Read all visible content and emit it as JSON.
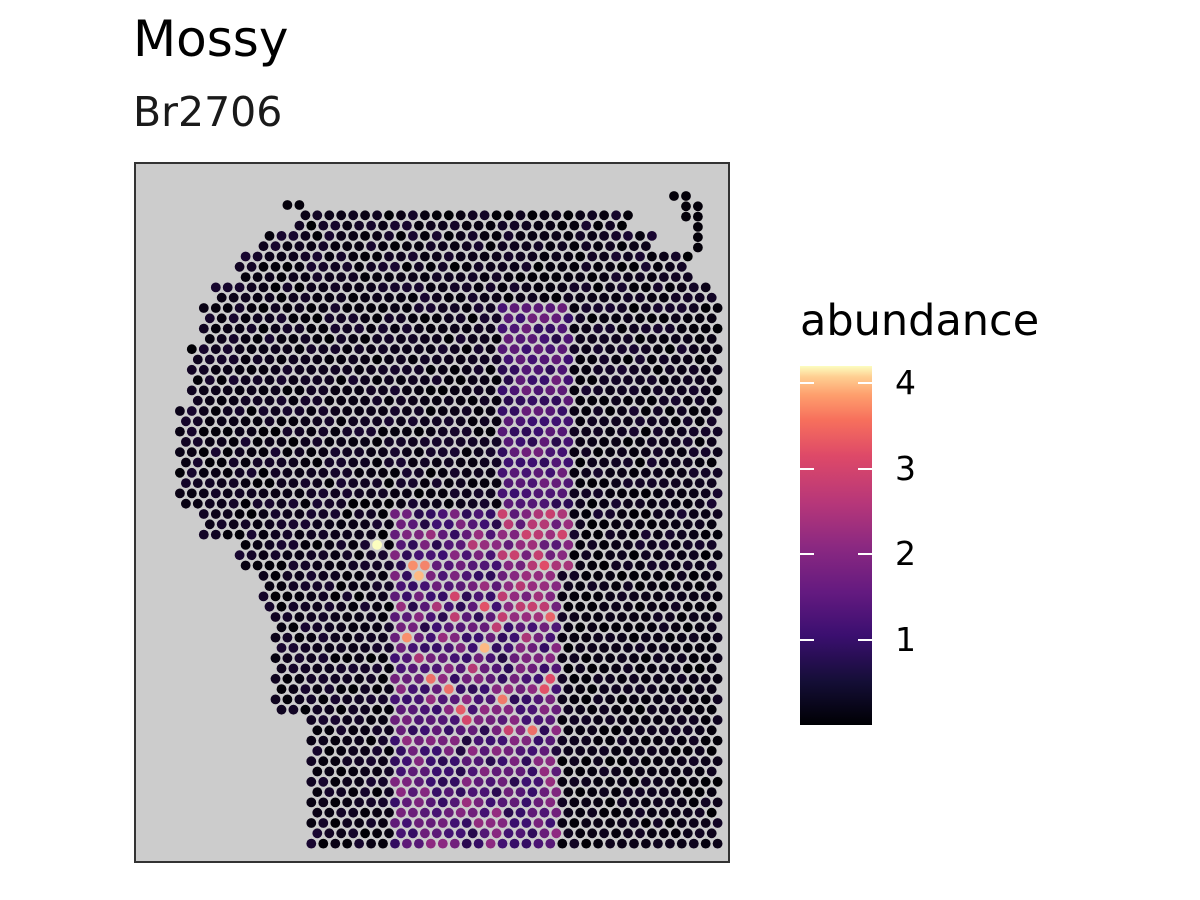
{
  "chart_data": {
    "type": "heatmap",
    "title": "Mossy",
    "subtitle": "Br2706",
    "legend": {
      "title": "abundance",
      "placement": "right"
    },
    "color_scale": {
      "name": "magma",
      "min": 0,
      "max": 4.2,
      "ticks": [
        1,
        2,
        3,
        4
      ],
      "tick_labels": [
        "1",
        "2",
        "3",
        "4"
      ],
      "colors": [
        "#000004",
        "#3b0f70",
        "#8c2981",
        "#de4968",
        "#fe9f6d",
        "#fcfdbf"
      ]
    },
    "panel_background": "#cccccc",
    "high_abundance_spots": [
      {
        "row": 33,
        "col": 18,
        "value": 4.2
      },
      {
        "row": 35,
        "col": 21,
        "value": 3.2
      },
      {
        "row": 36,
        "col": 22,
        "value": 3.6
      },
      {
        "row": 35,
        "col": 22,
        "value": 3.1
      },
      {
        "row": 42,
        "col": 21,
        "value": 3.2
      },
      {
        "row": 43,
        "col": 27,
        "value": 3.6
      },
      {
        "row": 46,
        "col": 23,
        "value": 2.9
      },
      {
        "row": 47,
        "col": 24,
        "value": 2.9
      },
      {
        "row": 48,
        "col": 29,
        "value": 3.0
      },
      {
        "row": 47,
        "col": 32,
        "value": 2.6
      },
      {
        "row": 46,
        "col": 33,
        "value": 2.5
      },
      {
        "row": 49,
        "col": 25,
        "value": 2.7
      },
      {
        "row": 50,
        "col": 26,
        "value": 2.4
      },
      {
        "row": 51,
        "col": 31,
        "value": 2.9
      },
      {
        "row": 51,
        "col": 29,
        "value": 2.3
      },
      {
        "row": 38,
        "col": 25,
        "value": 2.4
      },
      {
        "row": 39,
        "col": 27,
        "value": 2.6
      },
      {
        "row": 40,
        "col": 25,
        "value": 2.2
      },
      {
        "row": 39,
        "col": 23,
        "value": 2.0
      },
      {
        "row": 33,
        "col": 26,
        "value": 2.1
      },
      {
        "row": 32,
        "col": 23,
        "value": 1.8
      },
      {
        "row": 44,
        "col": 22,
        "value": 2.0
      },
      {
        "row": 41,
        "col": 28,
        "value": 2.2
      },
      {
        "row": 45,
        "col": 26,
        "value": 2.1
      },
      {
        "row": 42,
        "col": 31,
        "value": 2.0
      }
    ]
  }
}
